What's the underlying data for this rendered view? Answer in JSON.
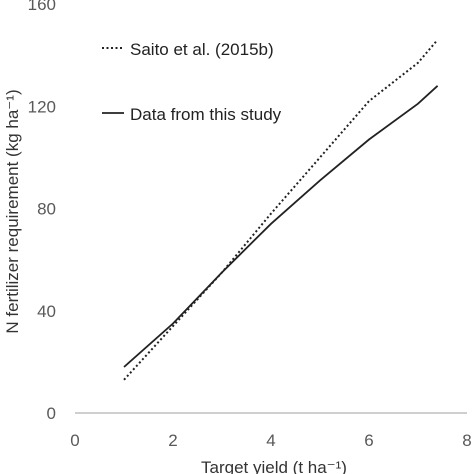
{
  "chart_data": {
    "type": "line",
    "xlabel": "Target yield (t ha⁻¹)",
    "ylabel": "N fertilizer requirement (kg ha⁻¹)",
    "xlim": [
      0,
      8
    ],
    "ylim": [
      0,
      160
    ],
    "x_ticks": [
      0,
      2,
      4,
      6,
      8
    ],
    "y_ticks": [
      0,
      40,
      80,
      120,
      160
    ],
    "grid": false,
    "legend_position": "top-left",
    "series": [
      {
        "name": "Saito et al. (2015b)",
        "style": "dotted",
        "color": "#222222",
        "x": [
          1.0,
          2.0,
          3.0,
          4.0,
          5.0,
          6.0,
          7.0,
          7.4
        ],
        "y": [
          13,
          34,
          55,
          78,
          100,
          122,
          137,
          146
        ]
      },
      {
        "name": "Data from this study",
        "style": "solid",
        "color": "#222222",
        "x": [
          1.0,
          2.0,
          3.0,
          4.0,
          5.0,
          6.0,
          7.0,
          7.4
        ],
        "y": [
          18,
          35,
          55,
          74,
          91,
          107,
          121,
          128
        ]
      }
    ]
  }
}
